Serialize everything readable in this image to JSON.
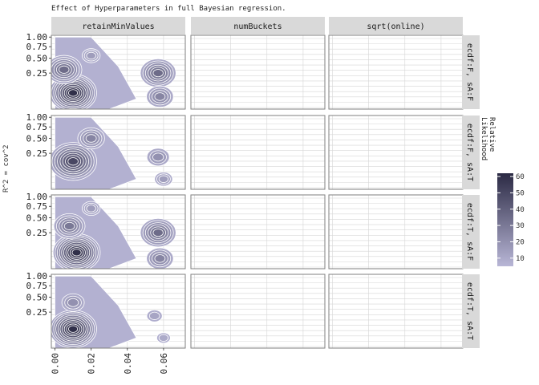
{
  "title": "Effect of Hyperparameters in full Bayesian regression.",
  "colors": {
    "strip_fill": "#d9d9d9",
    "panel_border": "#7f7f7f",
    "grid": "#d6d6d6",
    "fill_low": "#b8b6d6",
    "fill_high": "#2b2a44",
    "contour_line": "#ffffff"
  },
  "chart_data": {
    "type": "heatmap",
    "ylabel": "R^2 = cov^2",
    "xlabel": "",
    "facet_cols": [
      "retainMinValues",
      "numBuckets",
      "sqrt(online)"
    ],
    "facet_rows": [
      "ecdf:F, sA:F",
      "ecdf:F, sA:T",
      "ecdf:T, sA:F",
      "ecdf:T, sA:T"
    ],
    "x_ticks": [
      "0.00",
      "0.02",
      "0.04",
      "0.06"
    ],
    "x_tick_values": [
      0.0,
      0.02,
      0.04,
      0.06
    ],
    "xlim": [
      -0.002,
      0.072
    ],
    "y_scale": "sqrt",
    "y_ticks": [
      "0.25",
      "0.50",
      "0.75",
      "1.00"
    ],
    "y_tick_values": [
      0.25,
      0.5,
      0.75,
      1.0
    ],
    "ylim": [
      0.0,
      1.05
    ],
    "legend": {
      "title": [
        "Relative",
        "Likelihood"
      ],
      "ticks": [
        "10",
        "20",
        "30",
        "40",
        "50",
        "60"
      ],
      "tick_values": [
        10,
        20,
        30,
        40,
        50,
        60
      ],
      "range": [
        5,
        62
      ],
      "placement": "right"
    },
    "grid": true,
    "density_peaks": [
      [
        {
          "x": 0.01,
          "y": 0.05,
          "level": 60
        },
        {
          "x": 0.005,
          "y": 0.3,
          "level": 35
        },
        {
          "x": 0.02,
          "y": 0.55,
          "level": 15
        },
        {
          "x": 0.057,
          "y": 0.25,
          "level": 35
        },
        {
          "x": 0.058,
          "y": 0.03,
          "level": 25
        }
      ],
      [
        {
          "x": 0.01,
          "y": 0.15,
          "level": 50
        },
        {
          "x": 0.02,
          "y": 0.5,
          "level": 25
        },
        {
          "x": 0.057,
          "y": 0.2,
          "level": 20
        },
        {
          "x": 0.06,
          "y": 0.02,
          "level": 15
        }
      ],
      [
        {
          "x": 0.012,
          "y": 0.05,
          "level": 60
        },
        {
          "x": 0.008,
          "y": 0.35,
          "level": 30
        },
        {
          "x": 0.02,
          "y": 0.7,
          "level": 15
        },
        {
          "x": 0.057,
          "y": 0.25,
          "level": 35
        },
        {
          "x": 0.058,
          "y": 0.02,
          "level": 25
        }
      ],
      [
        {
          "x": 0.01,
          "y": 0.07,
          "level": 60
        },
        {
          "x": 0.01,
          "y": 0.4,
          "level": 20
        },
        {
          "x": 0.055,
          "y": 0.2,
          "level": 12
        },
        {
          "x": 0.06,
          "y": 0.02,
          "level": 10
        }
      ]
    ]
  }
}
